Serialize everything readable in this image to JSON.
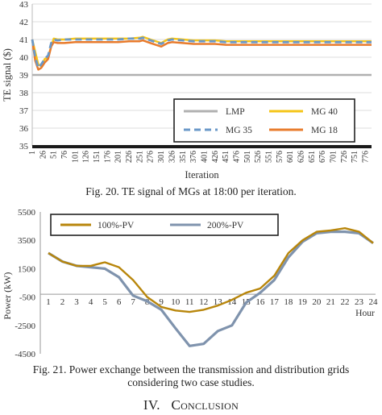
{
  "figure20": {
    "caption": "Fig. 20. TE signal of MGs at 18:00 per iteration.",
    "chart_data": {
      "type": "line",
      "ylabel": "TE signal ($)",
      "xlabel": "Iteration",
      "ylim": [
        35,
        43
      ],
      "yticks": [
        "35",
        "36",
        "37",
        "38",
        "39",
        "40",
        "41",
        "42",
        "43"
      ],
      "xticks": [
        "1",
        "26",
        "51",
        "76",
        "101",
        "126",
        "151",
        "176",
        "201",
        "226",
        "251",
        "276",
        "301",
        "326",
        "351",
        "376",
        "401",
        "426",
        "451",
        "476",
        "501",
        "526",
        "551",
        "576",
        "601",
        "626",
        "651",
        "676",
        "701",
        "726",
        "751",
        "776"
      ],
      "xlim": [
        1,
        790
      ],
      "grid": "horizontal",
      "legend_position": "bottom-right",
      "series": [
        {
          "name": "LMP",
          "color": "#b0b0b0",
          "dash": "solid",
          "x": [
            1,
            790
          ],
          "y": [
            39.0,
            39.0
          ]
        },
        {
          "name": "MG 40",
          "color": "#f5c518",
          "dash": "solid",
          "x": [
            1,
            8,
            15,
            22,
            30,
            38,
            45,
            51,
            60,
            76,
            101,
            126,
            151,
            176,
            201,
            226,
            251,
            258,
            276,
            301,
            316,
            326,
            351,
            376,
            401,
            426,
            451,
            476,
            501,
            551,
            601,
            651,
            701,
            751,
            790
          ],
          "y": [
            41.0,
            40.3,
            39.6,
            39.5,
            39.9,
            40.0,
            40.6,
            41.05,
            41.0,
            41.0,
            41.05,
            41.05,
            41.05,
            41.05,
            41.05,
            41.05,
            41.1,
            41.15,
            41.0,
            40.8,
            41.0,
            41.05,
            41.0,
            40.95,
            40.95,
            40.95,
            40.9,
            40.9,
            40.9,
            40.9,
            40.9,
            40.9,
            40.9,
            40.9,
            40.9
          ]
        },
        {
          "name": "MG 35",
          "color": "#6a98c8",
          "dash": "dashed",
          "x": [
            1,
            8,
            15,
            22,
            30,
            38,
            45,
            51,
            60,
            76,
            101,
            126,
            151,
            176,
            201,
            226,
            251,
            258,
            276,
            301,
            316,
            326,
            351,
            376,
            401,
            426,
            451,
            476,
            501,
            551,
            601,
            651,
            701,
            751,
            790
          ],
          "y": [
            41.0,
            40.0,
            39.4,
            39.6,
            39.9,
            40.1,
            40.8,
            41.0,
            40.95,
            41.0,
            41.0,
            41.0,
            41.0,
            41.0,
            41.0,
            41.05,
            41.05,
            41.1,
            40.95,
            40.75,
            40.95,
            41.0,
            40.95,
            40.9,
            40.9,
            40.9,
            40.85,
            40.85,
            40.85,
            40.85,
            40.85,
            40.85,
            40.85,
            40.85,
            40.85
          ]
        },
        {
          "name": "MG 18",
          "color": "#e87b2c",
          "dash": "solid",
          "x": [
            1,
            8,
            15,
            22,
            30,
            38,
            45,
            51,
            60,
            76,
            101,
            126,
            151,
            176,
            201,
            226,
            251,
            258,
            276,
            301,
            316,
            326,
            351,
            376,
            401,
            426,
            451,
            476,
            501,
            551,
            601,
            651,
            701,
            751,
            790
          ],
          "y": [
            41.0,
            39.8,
            39.3,
            39.4,
            39.7,
            39.9,
            40.6,
            40.85,
            40.8,
            40.8,
            40.85,
            40.85,
            40.85,
            40.85,
            40.85,
            40.9,
            40.9,
            40.95,
            40.8,
            40.6,
            40.8,
            40.85,
            40.8,
            40.75,
            40.75,
            40.75,
            40.7,
            40.7,
            40.7,
            40.7,
            40.7,
            40.7,
            40.7,
            40.7,
            40.7
          ]
        }
      ]
    }
  },
  "figure21": {
    "caption_line1": "Fig. 21. Power exchange between the transmission and distribution grids",
    "caption_line2": "considering two case studies.",
    "chart_data": {
      "type": "line",
      "ylabel": "Power (kW)",
      "xlabel": "Hour",
      "ylim": [
        -4500,
        5500
      ],
      "yticks": [
        "-4500",
        "-2500",
        "-500",
        "1500",
        "3500",
        "5500"
      ],
      "categories": [
        "1",
        "2",
        "3",
        "4",
        "5",
        "6",
        "7",
        "8",
        "9",
        "10",
        "11",
        "12",
        "13",
        "14",
        "15",
        "16",
        "17",
        "18",
        "19",
        "20",
        "21",
        "22",
        "23",
        "24"
      ],
      "legend_position": "top-left",
      "series": [
        {
          "name": "100%-PV",
          "color": "#b8860b",
          "values": [
            2600,
            2000,
            1700,
            1700,
            1950,
            1600,
            700,
            -500,
            -1200,
            -1450,
            -1550,
            -1400,
            -1100,
            -700,
            -200,
            100,
            1000,
            2600,
            3500,
            4100,
            4200,
            4350,
            4100,
            3300
          ]
        },
        {
          "name": "200%-PV",
          "color": "#7f93ad",
          "values": [
            2600,
            2000,
            1700,
            1600,
            1500,
            900,
            -400,
            -800,
            -1400,
            -2700,
            -3950,
            -3800,
            -2900,
            -2500,
            -900,
            -200,
            700,
            2300,
            3400,
            4000,
            4100,
            4100,
            4000,
            3300
          ]
        }
      ]
    }
  },
  "section_heading": {
    "number": "IV.",
    "title": "Conclusion"
  }
}
